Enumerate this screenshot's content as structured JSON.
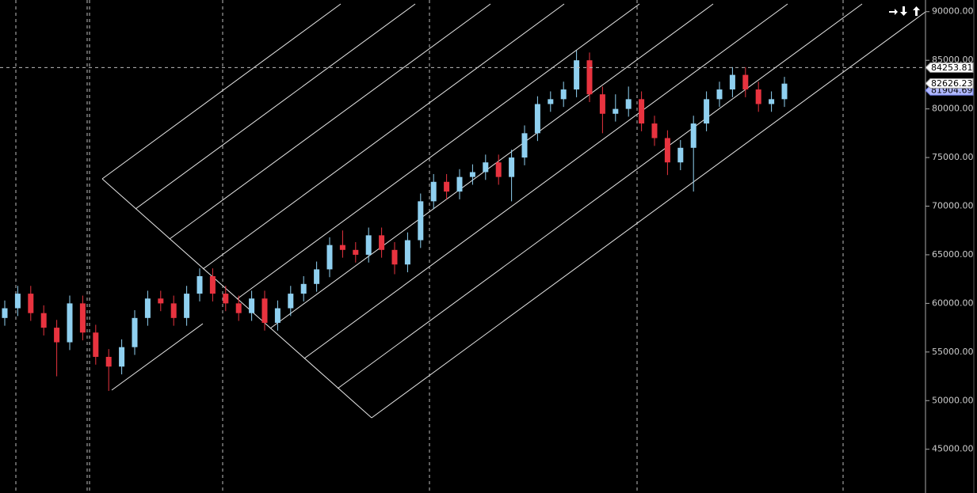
{
  "chart_data": {
    "type": "candlestick",
    "categories": [
      null,
      null,
      null,
      null,
      null,
      null,
      null,
      null,
      null,
      null,
      null,
      null,
      null,
      null,
      null,
      null,
      null,
      null,
      null,
      null,
      null,
      null,
      null,
      null,
      null,
      null,
      null,
      null,
      null,
      null,
      null,
      null,
      null,
      null,
      null,
      null,
      null,
      null,
      null,
      null,
      null,
      null,
      null,
      null,
      null,
      null,
      null,
      null,
      null,
      null,
      null,
      null,
      null,
      null,
      null,
      null,
      null,
      null,
      null,
      null,
      null
    ],
    "open": [
      58500,
      59500,
      61000,
      59000,
      57500,
      56000,
      60000,
      57000,
      54500,
      53500,
      55500,
      58500,
      60500,
      60000,
      58500,
      61000,
      62800,
      61000,
      60000,
      59000,
      60500,
      58000,
      59500,
      61000,
      62000,
      63500,
      66000,
      65500,
      65000,
      67000,
      65500,
      64000,
      66500,
      70500,
      72500,
      71500,
      73000,
      73500,
      74500,
      73000,
      75000,
      77500,
      80500,
      81000,
      82000,
      85000,
      81500,
      79500,
      80000,
      81000,
      78500,
      77000,
      74500,
      76000,
      78500,
      81000,
      82000,
      83500,
      82000,
      80500,
      81000
    ],
    "high": [
      60300,
      61800,
      61800,
      59800,
      58300,
      60800,
      60800,
      57800,
      55300,
      56300,
      59300,
      61300,
      61300,
      60800,
      61800,
      63600,
      63600,
      61800,
      60800,
      61300,
      61300,
      60300,
      61800,
      62800,
      64300,
      66800,
      67500,
      66300,
      67800,
      67800,
      66300,
      67300,
      71300,
      73300,
      73300,
      73800,
      74300,
      75300,
      75300,
      75800,
      78300,
      81300,
      81800,
      82800,
      86000,
      85800,
      82300,
      81500,
      82300,
      81800,
      79300,
      77800,
      76800,
      79300,
      81800,
      82800,
      84300,
      84300,
      82800,
      81800,
      83300
    ],
    "low": [
      57700,
      58700,
      58200,
      56700,
      52500,
      55200,
      56200,
      53700,
      51000,
      52700,
      54700,
      57700,
      59200,
      57700,
      57700,
      60200,
      60200,
      59200,
      58200,
      58200,
      57200,
      57200,
      58700,
      60200,
      61200,
      62700,
      64700,
      64200,
      64200,
      64700,
      63000,
      63200,
      65700,
      69700,
      70700,
      70700,
      72200,
      72700,
      72200,
      70500,
      74200,
      76700,
      79700,
      80200,
      81200,
      80700,
      77500,
      78700,
      79200,
      77700,
      76200,
      73200,
      73700,
      71500,
      77700,
      80200,
      81200,
      81200,
      79700,
      79700,
      80200
    ],
    "close": [
      59500,
      61000,
      59000,
      57500,
      56000,
      60000,
      57000,
      54500,
      53500,
      55500,
      58500,
      60500,
      60000,
      58500,
      61000,
      62800,
      61000,
      60000,
      59000,
      60500,
      58000,
      59500,
      61000,
      62000,
      63500,
      66000,
      65500,
      65000,
      67000,
      65500,
      64000,
      66500,
      70500,
      72500,
      71500,
      73000,
      73500,
      74500,
      73000,
      75000,
      77500,
      80500,
      81000,
      82000,
      85000,
      81500,
      79500,
      80000,
      81000,
      78500,
      77000,
      74500,
      76000,
      78500,
      81000,
      82000,
      83500,
      82000,
      80500,
      81000,
      82600
    ],
    "up_color": "#8fd0f0",
    "down_color": "#e8333f",
    "ylim": [
      40500,
      91200
    ],
    "yticks": [
      {
        "value": 45000,
        "label": "45000.00"
      },
      {
        "value": 50000,
        "label": "50000.00"
      },
      {
        "value": 55000,
        "label": "55000.00"
      },
      {
        "value": 60000,
        "label": "60000.00"
      },
      {
        "value": 65000,
        "label": "65000.00"
      },
      {
        "value": 70000,
        "label": "70000.00"
      },
      {
        "value": 75000,
        "label": "75000.00"
      },
      {
        "value": 80000,
        "label": "80000.00"
      },
      {
        "value": 85000,
        "label": "85000.00"
      },
      {
        "value": 90000,
        "label": "90000.00"
      }
    ],
    "crosshair_price": 84253.81,
    "last_price": 82626.23,
    "bid_price": 81904.69
  }
}
